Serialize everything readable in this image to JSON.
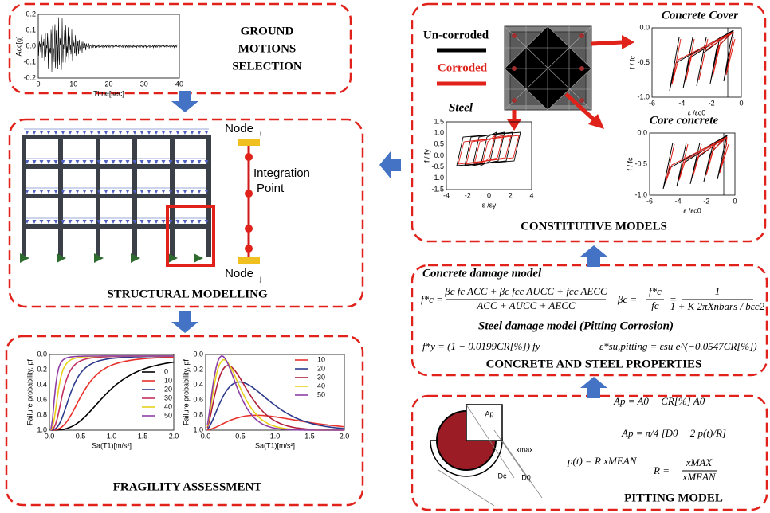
{
  "ground_motions": {
    "title": [
      "GROUND",
      "MOTIONS",
      "SELECTION"
    ],
    "plot": {
      "ylabel": "Acc[g]",
      "xlabel": "Time[sec]",
      "yticks": [
        "0.2",
        "0.1",
        "0.0",
        "-0.1",
        "-0.2"
      ],
      "xticks": [
        "0",
        "10",
        "20",
        "30",
        "40"
      ]
    }
  },
  "structural": {
    "title": "STRUCTURAL MODELLING",
    "node_i": "Node",
    "node_i_sub": "i",
    "integration": [
      "Integration",
      "Point"
    ],
    "node_j": "Node",
    "node_j_sub": "j"
  },
  "fragility": {
    "title": "FRAGILITY ASSESSMENT",
    "charts": [
      {
        "ylabel": "Failure probability, pf",
        "xlabel": "Sa(T1)[m/s²]",
        "yticks": [
          "0.0",
          "0.2",
          "0.4",
          "0.6",
          "0.8",
          "1.0"
        ],
        "xticks": [
          "0.0",
          "0.5",
          "1.0",
          "1.5",
          "2.0"
        ],
        "legend": [
          {
            "label": "0",
            "color": "#000000"
          },
          {
            "label": "10",
            "color": "#e8302a"
          },
          {
            "label": "20",
            "color": "#2b3a8c"
          },
          {
            "label": "30",
            "color": "#c3315e"
          },
          {
            "label": "40",
            "color": "#e8d21a"
          },
          {
            "label": "50",
            "color": "#8e3fa6"
          }
        ]
      },
      {
        "ylabel": "Failure probability, pf",
        "xlabel": "Sa(T1)[m/s²]",
        "yticks": [
          "0.0",
          "0.2",
          "0.4",
          "0.6",
          "0.8",
          "1.0"
        ],
        "xticks": [
          "0.0",
          "0.5",
          "1.0",
          "1.5",
          "2.0"
        ],
        "legend": [
          {
            "label": "10",
            "color": "#e8302a"
          },
          {
            "label": "20",
            "color": "#2b3a8c"
          },
          {
            "label": "30",
            "color": "#b0203a"
          },
          {
            "label": "40",
            "color": "#e8d21a"
          },
          {
            "label": "50",
            "color": "#8e3fa6"
          }
        ]
      }
    ]
  },
  "constitutive": {
    "title": "CONSTITUTIVE MODELS",
    "uncorroded": "Un-corroded",
    "corroded": "Corroded",
    "cover": {
      "title": "Concrete Cover",
      "ylabel": "f / fc",
      "xlabel": "ε /εc0",
      "yticks": [
        "0.0",
        "-0.5",
        "-1.0"
      ],
      "xticks": [
        "-6",
        "-4",
        "-2",
        "0"
      ]
    },
    "steel": {
      "title": "Steel",
      "ylabel": "f / fy",
      "xlabel": "ε /εy",
      "yticks": [
        "1.5",
        "1.0",
        "0.5",
        "0.0",
        "-0.5",
        "-1.0",
        "-1.5"
      ],
      "xticks": [
        "-4",
        "-2",
        "0",
        "2",
        "4"
      ]
    },
    "core": {
      "title": "Core concrete",
      "ylabel": "f / fc",
      "xlabel": "ε /εc0",
      "yticks": [
        "0.0",
        "-0.5",
        "-1.0"
      ],
      "xticks": [
        "-6",
        "-4",
        "-2",
        "0"
      ]
    }
  },
  "properties": {
    "title": "CONCRETE AND STEEL PROPERTIES",
    "concrete_heading": "Concrete damage model",
    "steel_heading": "Steel damage model (Pitting Corrosion)",
    "eq_fc": {
      "lhs": "f*c =",
      "num": "βc fc ACC + βc fcc AUCC + fcc AECC",
      "den": "ACC + AUCC + AECC"
    },
    "eq_beta": {
      "lhs": "βc =",
      "num": "f*c",
      "den": "fc",
      "rhs": "=",
      "num2": "1",
      "den2": "1 + K 2πXnbars / bεc2"
    },
    "eq_fy": "f*y = (1 − 0.0199CR[%]) fy",
    "eq_esu": "ε*su,pitting = εsu e^(−0.0547CR[%])"
  },
  "pitting": {
    "title": "PITTING MODEL",
    "labels": {
      "ap": "Ap",
      "xmax": "xmax",
      "dc": "Dc",
      "d0": "D0"
    },
    "eq_ap1": "Ap = A0 − CR[%] A0",
    "eq_ap2": "Ap = π/4 [D0 − 2 p(t)/R]",
    "eq_pt": "p(t) = R xMEAN",
    "eq_r": {
      "lhs": "R =",
      "num": "xMAX",
      "den": "xMEAN"
    }
  }
}
